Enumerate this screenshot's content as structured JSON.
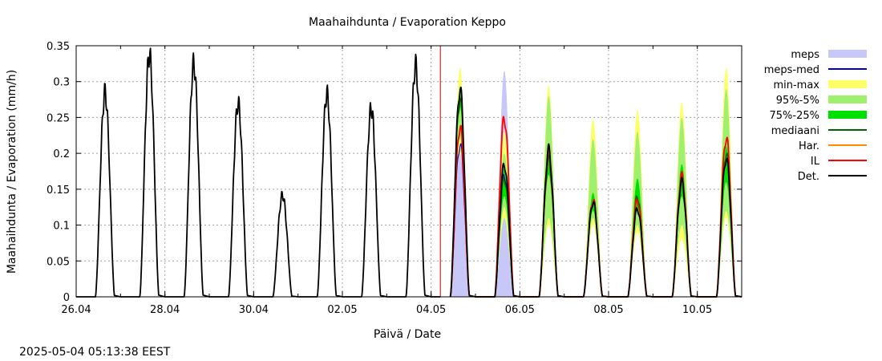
{
  "chart_data": {
    "type": "line",
    "title": "Maahaihdunta / Evaporation  Keppo",
    "xlabel": "Päivä / Date",
    "ylabel": "Maahaihdunta / Evaporation (mm/h)",
    "timestamp": "2025-05-04 05:13:38 EEST",
    "ylim": [
      0,
      0.35
    ],
    "yticks": [
      "0",
      "0.05",
      "0.1",
      "0.15",
      "0.2",
      "0.25",
      "0.3",
      "0.35"
    ],
    "xlim": [
      "2025-04-26",
      "2025-05-11"
    ],
    "xticks": [
      {
        "date": "2025-04-26",
        "label": "26.04"
      },
      {
        "date": "2025-04-28",
        "label": "28.04"
      },
      {
        "date": "2025-04-30",
        "label": "30.04"
      },
      {
        "date": "2025-05-02",
        "label": "02.05"
      },
      {
        "date": "2025-05-04",
        "label": "04.05"
      },
      {
        "date": "2025-05-06",
        "label": "06.05"
      },
      {
        "date": "2025-05-08",
        "label": "08.05"
      },
      {
        "date": "2025-05-10",
        "label": "10.05"
      }
    ],
    "grid": true,
    "legend_position": "right",
    "forecast_start": "2025-05-04 05:00",
    "colors": {
      "meps": "#c8c8f8",
      "meps_med": "#0000c0",
      "minmax": "#ffff66",
      "p95_5": "#a0f070",
      "p75_25": "#00e000",
      "median": "#006400",
      "har": "#ff8c00",
      "il": "#ff0000",
      "det": "#000000",
      "forecast_line": "#c00000",
      "grid": "#a0a0a0"
    },
    "legend": [
      {
        "key": "meps",
        "label": "meps",
        "kind": "band"
      },
      {
        "key": "meps_med",
        "label": "meps-med",
        "kind": "line"
      },
      {
        "key": "minmax",
        "label": "min-max",
        "kind": "band"
      },
      {
        "key": "p95_5",
        "label": "95%-5%",
        "kind": "band"
      },
      {
        "key": "p75_25",
        "label": "75%-25%",
        "kind": "band"
      },
      {
        "key": "median",
        "label": "mediaani",
        "kind": "line"
      },
      {
        "key": "har",
        "label": "Har.",
        "kind": "line"
      },
      {
        "key": "il",
        "label": "IL",
        "kind": "line"
      },
      {
        "key": "det",
        "label": "Det.",
        "kind": "line"
      }
    ],
    "observed_daily_peaks": [
      {
        "date": "2025-04-26",
        "peak": 0.285
      },
      {
        "date": "2025-04-27",
        "peak": 0.338
      },
      {
        "date": "2025-04-28",
        "peak": 0.325
      },
      {
        "date": "2025-04-29",
        "peak": 0.27
      },
      {
        "date": "2025-04-30",
        "peak": 0.142
      },
      {
        "date": "2025-05-01",
        "peak": 0.283
      },
      {
        "date": "2025-05-02",
        "peak": 0.263
      },
      {
        "date": "2025-05-03",
        "peak": 0.323
      }
    ],
    "forecast_daily": [
      {
        "date": "2025-05-04",
        "det": 0.29,
        "il": 0.237,
        "median": 0.275,
        "p75": 0.285,
        "p25": 0.265,
        "p95": 0.295,
        "p5": 0.22,
        "max": 0.32,
        "min": 0.2,
        "meps_max": 0.215,
        "meps_med": 0.212
      },
      {
        "date": "2025-05-05",
        "det": 0.185,
        "il": 0.25,
        "median": 0.165,
        "p75": 0.18,
        "p25": 0.14,
        "p95": 0.2,
        "p5": 0.125,
        "max": 0.23,
        "min": 0.11,
        "meps_max": 0.315,
        "meps_med": 0.17
      },
      {
        "date": "2025-05-06",
        "det": 0.205,
        "il": 0.2,
        "median": 0.19,
        "p75": 0.205,
        "p25": 0.17,
        "p95": 0.28,
        "p5": 0.11,
        "max": 0.295,
        "min": 0.1
      },
      {
        "date": "2025-05-07",
        "det": 0.132,
        "il": 0.135,
        "median": 0.135,
        "p75": 0.145,
        "p25": 0.12,
        "p95": 0.22,
        "p5": 0.11,
        "max": 0.248,
        "min": 0.1
      },
      {
        "date": "2025-05-08",
        "det": 0.123,
        "il": 0.135,
        "median": 0.14,
        "p75": 0.165,
        "p25": 0.12,
        "p95": 0.23,
        "p5": 0.1,
        "max": 0.26,
        "min": 0.09
      },
      {
        "date": "2025-05-09",
        "det": 0.16,
        "il": 0.168,
        "median": 0.165,
        "p75": 0.185,
        "p25": 0.14,
        "p95": 0.25,
        "p5": 0.1,
        "max": 0.272,
        "min": 0.08
      },
      {
        "date": "2025-05-10",
        "det": 0.193,
        "il": 0.222,
        "median": 0.2,
        "p75": 0.21,
        "p25": 0.16,
        "p95": 0.29,
        "p5": 0.12,
        "max": 0.32,
        "min": 0.11
      }
    ]
  }
}
